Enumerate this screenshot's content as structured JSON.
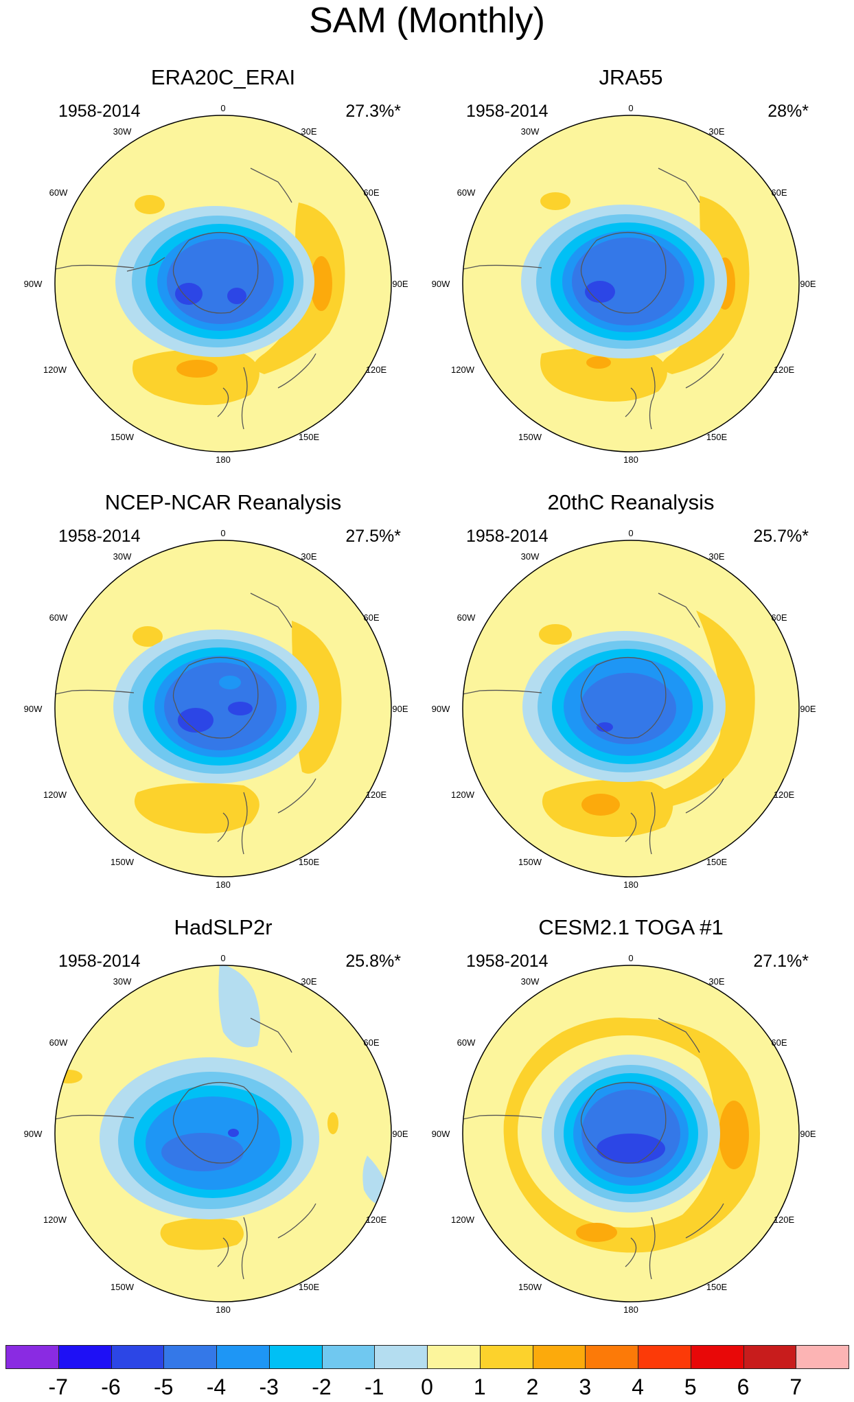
{
  "figure": {
    "title": "SAM (Monthly)"
  },
  "lon_labels": [
    "0",
    "30E",
    "60E",
    "90E",
    "120E",
    "150E",
    "180",
    "150W",
    "120W",
    "90W",
    "60W",
    "30W"
  ],
  "panels": [
    {
      "title": "ERA20C_ERAI",
      "period": "1958-2014",
      "variance": "27.3%*"
    },
    {
      "title": "JRA55",
      "period": "1958-2014",
      "variance": "28%*"
    },
    {
      "title": "NCEP-NCAR Reanalysis",
      "period": "1958-2014",
      "variance": "27.5%*"
    },
    {
      "title": "20thC Reanalysis",
      "period": "1958-2014",
      "variance": "25.7%*"
    },
    {
      "title": "HadSLP2r",
      "period": "1958-2014",
      "variance": "25.8%*"
    },
    {
      "title": "CESM2.1 TOGA #1",
      "period": "1958-2014",
      "variance": "27.1%*"
    }
  ],
  "colorbar": {
    "ticks": [
      "-7",
      "-6",
      "-5",
      "-4",
      "-3",
      "-2",
      "-1",
      "0",
      "1",
      "2",
      "3",
      "4",
      "5",
      "6",
      "7"
    ],
    "colors": [
      "#8a2be2",
      "#1e10f5",
      "#2c46e6",
      "#3478e8",
      "#1e96f5",
      "#00c0f5",
      "#70c8f0",
      "#b4ddf0",
      "#fcf59c",
      "#fcd22c",
      "#fcaa0c",
      "#fc7a08",
      "#fc3a08",
      "#e80808",
      "#c81c1c",
      "#fcb4b4"
    ]
  },
  "legend_colors": {
    "background": "#fcf59c",
    "pos1": "#fcd22c",
    "pos2": "#fcaa0c",
    "neg1": "#b4ddf0",
    "neg2": "#70c8f0",
    "neg3": "#00c0f5",
    "neg4": "#1e96f5",
    "neg5": "#3478e8",
    "neg6": "#2c46e6"
  }
}
